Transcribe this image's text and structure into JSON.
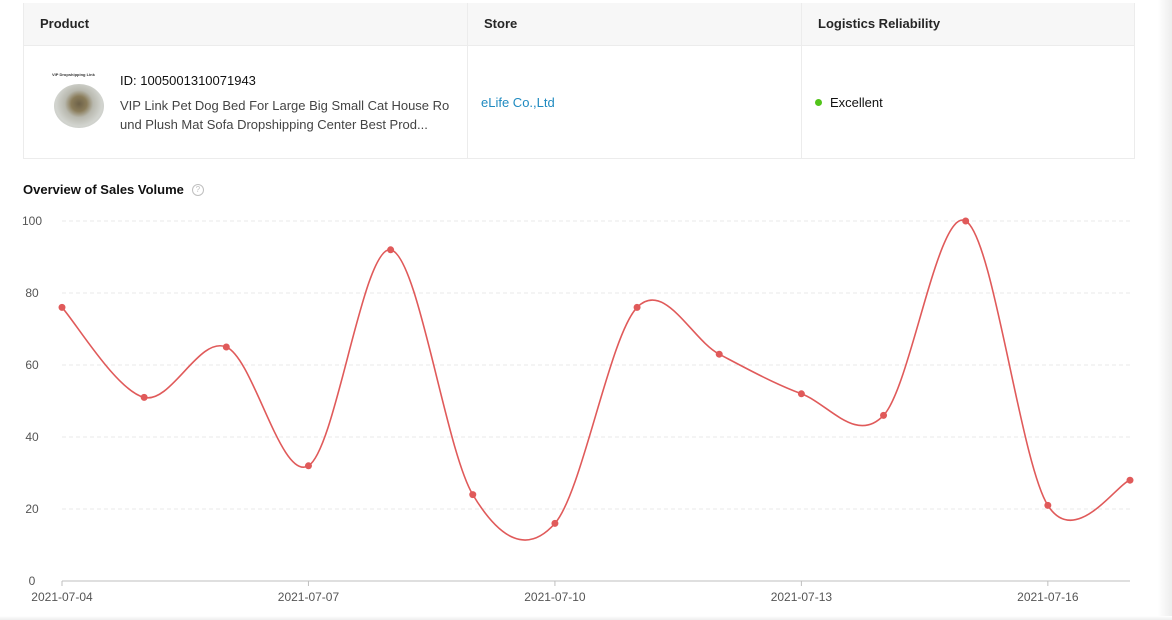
{
  "table": {
    "headers": {
      "product": "Product",
      "store": "Store",
      "logistics": "Logistics Reliability"
    },
    "row": {
      "thumbnail_caption": "VIP Dropshipping Link",
      "product_id": "ID: 1005001310071943",
      "product_title": "VIP Link Pet Dog Bed For Large Big Small Cat House Round Plush Mat Sofa Dropshipping Center Best Prod...",
      "store_name": "eLife Co.,Ltd",
      "logistics_status": "Excellent",
      "status_color": "#52c41a",
      "link_color": "#1f8ac0"
    }
  },
  "chart_section": {
    "title": "Overview of Sales Volume",
    "help_icon": "question-circle-icon"
  },
  "chart_data": {
    "type": "line",
    "title": "Overview of Sales Volume",
    "xlabel": "",
    "ylabel": "",
    "x": [
      "2021-07-04",
      "2021-07-05",
      "2021-07-06",
      "2021-07-07",
      "2021-07-08",
      "2021-07-09",
      "2021-07-10",
      "2021-07-11",
      "2021-07-12",
      "2021-07-13",
      "2021-07-14",
      "2021-07-15",
      "2021-07-16",
      "2021-07-17"
    ],
    "x_tick_labels": [
      "2021-07-04",
      "2021-07-07",
      "2021-07-10",
      "2021-07-13",
      "2021-07-16"
    ],
    "series": [
      {
        "values": [
          76,
          51,
          65,
          32,
          92,
          24,
          16,
          76,
          63,
          52,
          46,
          100,
          21,
          28
        ],
        "color": "#e05a5a"
      }
    ],
    "ylim": [
      0,
      100
    ],
    "y_ticks": [
      0,
      20,
      40,
      60,
      80,
      100
    ],
    "grid": true,
    "smooth": true
  }
}
